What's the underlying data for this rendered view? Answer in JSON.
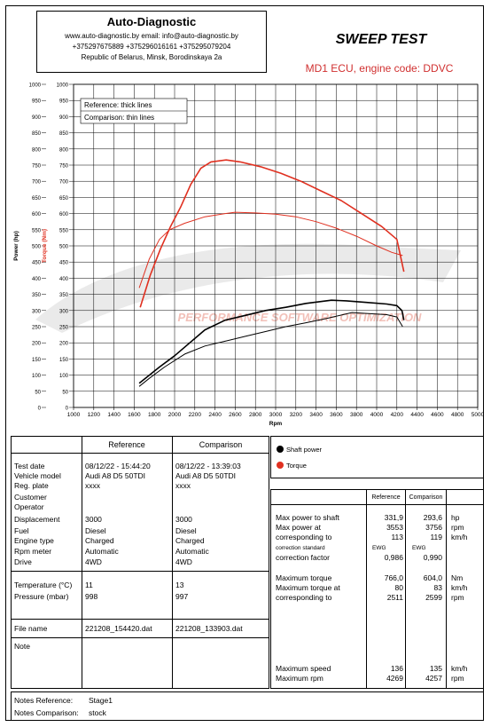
{
  "header": {
    "company": "Auto-Diagnostic",
    "web_email": "www.auto-diagnostic.by    email: info@auto-diagnostic.by",
    "phones": "+375297675889  +375296016161  +375295079204",
    "address": "Republic of Belarus, Minsk, Borodinskaya 2a"
  },
  "title": "SWEEP TEST",
  "subtitle": "MD1 ECU, engine code: DDVC",
  "watermark": "PERFORMANCE SOFTWARE OPTIMIZATION",
  "chart_data": {
    "type": "line",
    "xlabel": "Rpm",
    "ylabel_power": "Power (hp)",
    "ylabel_torque": "Torque (Nm)",
    "xlim": [
      1000,
      5000
    ],
    "ylim": [
      0,
      1000
    ],
    "x_ticks": [
      1000,
      1200,
      1400,
      1600,
      1800,
      2000,
      2200,
      2400,
      2600,
      2800,
      3000,
      3200,
      3400,
      3600,
      3800,
      4000,
      4200,
      4400,
      4600,
      4800,
      5000
    ],
    "y_ticks": [
      0,
      50,
      100,
      150,
      200,
      250,
      300,
      350,
      400,
      450,
      500,
      550,
      600,
      650,
      700,
      750,
      800,
      850,
      900,
      950,
      1000
    ],
    "grid": true,
    "legend_note": [
      "Reference: thick lines",
      "Comparison: thin lines"
    ],
    "legend": [
      "Shaft power",
      "Torque"
    ],
    "colors": {
      "power": "#000000",
      "torque": "#e03020"
    },
    "series": [
      {
        "name": "Shaft power",
        "role": "Reference",
        "x": [
          1650,
          1750,
          1850,
          2000,
          2150,
          2300,
          2500,
          2700,
          2900,
          3100,
          3300,
          3500,
          3553,
          3700,
          3900,
          4100,
          4200,
          4250,
          4269
        ],
        "y": [
          75,
          100,
          125,
          160,
          200,
          240,
          270,
          285,
          300,
          310,
          322,
          330,
          331.9,
          330,
          325,
          320,
          315,
          300,
          270
        ]
      },
      {
        "name": "Shaft power",
        "role": "Comparison",
        "x": [
          1650,
          1750,
          1900,
          2100,
          2300,
          2500,
          2700,
          2900,
          3100,
          3300,
          3500,
          3756,
          3900,
          4100,
          4200,
          4257
        ],
        "y": [
          65,
          90,
          125,
          165,
          190,
          205,
          220,
          235,
          250,
          262,
          275,
          293.6,
          291,
          287,
          280,
          250
        ]
      },
      {
        "name": "Torque",
        "role": "Reference",
        "x": [
          1660,
          1760,
          1860,
          1960,
          2060,
          2160,
          2260,
          2360,
          2511,
          2650,
          2850,
          3050,
          3250,
          3450,
          3650,
          3850,
          4050,
          4200,
          4269
        ],
        "y": [
          310,
          410,
          490,
          560,
          620,
          690,
          740,
          760,
          766,
          760,
          745,
          725,
          700,
          670,
          640,
          600,
          560,
          520,
          420
        ]
      },
      {
        "name": "Torque",
        "role": "Comparison",
        "x": [
          1650,
          1750,
          1850,
          1950,
          2100,
          2300,
          2500,
          2599,
          2800,
          3000,
          3200,
          3400,
          3600,
          3800,
          4000,
          4150,
          4257
        ],
        "y": [
          370,
          460,
          520,
          550,
          570,
          590,
          600,
          604,
          602,
          598,
          590,
          575,
          555,
          530,
          500,
          480,
          470
        ]
      }
    ]
  },
  "info": {
    "col_ref": "Reference",
    "col_cmp": "Comparison",
    "labels": [
      "Test date",
      "Vehicle model",
      "Reg. plate",
      "Customer",
      "Operator",
      "Displacement",
      "Fuel",
      "Engine type",
      "Rpm meter",
      "Drive"
    ],
    "ref": [
      "08/12/22 - 15:44:20",
      "Audi A8 D5 50TDI",
      "xxxx",
      "",
      "",
      "3000",
      "Diesel",
      "Charged",
      "Automatic",
      "4WD"
    ],
    "cmp": [
      "08/12/22 - 13:39:03",
      "Audi A8 D5 50TDI",
      "xxxx",
      "",
      "",
      "3000",
      "Diesel",
      "Charged",
      "Automatic",
      "4WD"
    ],
    "temp_label": "Temperature (°C)",
    "temp_ref": "11",
    "temp_cmp": "13",
    "pres_label": "Pressure (mbar)",
    "pres_ref": "998",
    "pres_cmp": "997",
    "file_label": "File name",
    "file_ref": "221208_154420.dat",
    "file_cmp": "221208_133903.dat",
    "note_label": "Note"
  },
  "results": {
    "col_ref": "Reference",
    "col_cmp": "Comparison",
    "rows": [
      {
        "label": "Max power to shaft",
        "ref": "331,9",
        "cmp": "293,6",
        "unit": "hp"
      },
      {
        "label": "Max power at",
        "ref": "3553",
        "cmp": "3756",
        "unit": "rpm"
      },
      {
        "label": "corresponding to",
        "ref": "113",
        "cmp": "119",
        "unit": "km/h"
      },
      {
        "label": "correction standard",
        "ref": "EWG",
        "cmp": "EWG",
        "unit": ""
      },
      {
        "label": "correction factor",
        "ref": "0,986",
        "cmp": "0,990",
        "unit": ""
      },
      {
        "label": "Maximum torque",
        "ref": "766,0",
        "cmp": "604,0",
        "unit": "Nm"
      },
      {
        "label": "Maximum torque at",
        "ref": "80",
        "cmp": "83",
        "unit": "km/h"
      },
      {
        "label": "corresponding to",
        "ref": "2511",
        "cmp": "2599",
        "unit": "rpm"
      },
      {
        "label": "Maximum speed",
        "ref": "136",
        "cmp": "135",
        "unit": "km/h"
      },
      {
        "label": "Maximum rpm",
        "ref": "4269",
        "cmp": "4257",
        "unit": "rpm"
      }
    ]
  },
  "notes": {
    "ref_label": "Notes Reference:",
    "ref_value": "Stage1",
    "cmp_label": "Notes Comparison:",
    "cmp_value": "stock"
  }
}
